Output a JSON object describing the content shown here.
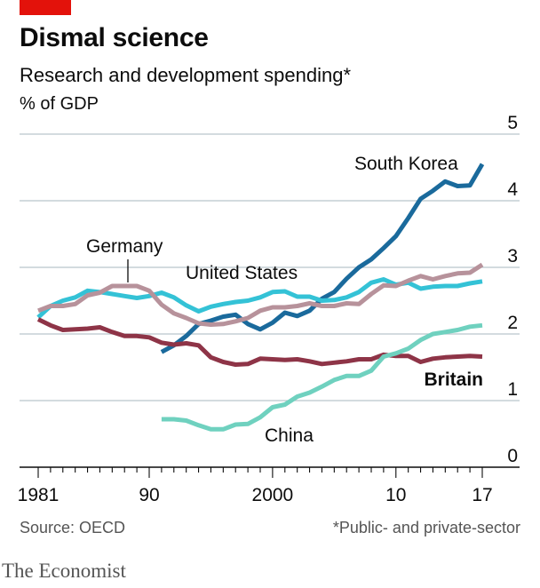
{
  "header": {
    "title": "Dismal science",
    "subtitle": "Research and development spending*",
    "unit": "% of GDP"
  },
  "footer": {
    "source": "Source: OECD",
    "footnote": "*Public- and private-sector",
    "brand": "The Economist"
  },
  "colors": {
    "brand_red": "#e3120b",
    "south_korea": "#1a6a9c",
    "united_states": "#34c2d6",
    "germany": "#b7929b",
    "britain": "#8e3447",
    "china": "#6fd1bf"
  },
  "chart_data": {
    "type": "line",
    "xlim": [
      1981,
      2017
    ],
    "ylim": [
      0,
      5
    ],
    "x_ticks": [
      1981,
      1990,
      2000,
      2010,
      2017
    ],
    "x_tick_labels": [
      "1981",
      "90",
      "2000",
      "10",
      "17"
    ],
    "y_ticks": [
      0,
      1,
      2,
      3,
      4,
      5
    ],
    "y_tick_labels": [
      "0",
      "1",
      "2",
      "3",
      "4",
      "5"
    ],
    "grid": "horizontal",
    "series": [
      {
        "name": "South Korea",
        "color": "#1a6a9c",
        "bold_label": false,
        "x": [
          1991,
          1992,
          1993,
          1994,
          1995,
          1996,
          1997,
          1998,
          1999,
          2000,
          2001,
          2002,
          2003,
          2004,
          2005,
          2006,
          2007,
          2008,
          2009,
          2010,
          2011,
          2012,
          2013,
          2014,
          2015,
          2016,
          2017
        ],
        "y": [
          1.73,
          1.83,
          1.97,
          2.15,
          2.2,
          2.26,
          2.29,
          2.15,
          2.07,
          2.17,
          2.32,
          2.27,
          2.35,
          2.53,
          2.63,
          2.83,
          3.0,
          3.12,
          3.29,
          3.47,
          3.74,
          4.03,
          4.15,
          4.29,
          4.22,
          4.23,
          4.55
        ]
      },
      {
        "name": "United States",
        "color": "#34c2d6",
        "bold_label": false,
        "x": [
          1981,
          1982,
          1983,
          1984,
          1985,
          1986,
          1987,
          1988,
          1989,
          1990,
          1991,
          1992,
          1993,
          1994,
          1995,
          1996,
          1997,
          1998,
          1999,
          2000,
          2001,
          2002,
          2003,
          2004,
          2005,
          2006,
          2007,
          2008,
          2009,
          2010,
          2011,
          2012,
          2013,
          2014,
          2015,
          2016,
          2017
        ],
        "y": [
          2.25,
          2.42,
          2.5,
          2.55,
          2.65,
          2.63,
          2.6,
          2.57,
          2.54,
          2.57,
          2.62,
          2.55,
          2.43,
          2.34,
          2.41,
          2.45,
          2.48,
          2.5,
          2.55,
          2.63,
          2.64,
          2.56,
          2.56,
          2.5,
          2.51,
          2.55,
          2.63,
          2.77,
          2.82,
          2.74,
          2.77,
          2.68,
          2.71,
          2.72,
          2.72,
          2.76,
          2.79
        ]
      },
      {
        "name": "Germany",
        "color": "#b7929b",
        "bold_label": false,
        "x": [
          1981,
          1982,
          1983,
          1984,
          1985,
          1986,
          1987,
          1988,
          1989,
          1990,
          1991,
          1992,
          1993,
          1994,
          1995,
          1996,
          1997,
          1998,
          1999,
          2000,
          2001,
          2002,
          2003,
          2004,
          2005,
          2006,
          2007,
          2008,
          2009,
          2010,
          2011,
          2012,
          2013,
          2014,
          2015,
          2016,
          2017
        ],
        "y": [
          2.35,
          2.42,
          2.42,
          2.45,
          2.58,
          2.62,
          2.72,
          2.72,
          2.72,
          2.65,
          2.44,
          2.31,
          2.24,
          2.16,
          2.14,
          2.15,
          2.19,
          2.24,
          2.35,
          2.4,
          2.4,
          2.42,
          2.46,
          2.42,
          2.42,
          2.46,
          2.45,
          2.6,
          2.73,
          2.72,
          2.8,
          2.87,
          2.82,
          2.87,
          2.91,
          2.92,
          3.04
        ]
      },
      {
        "name": "Britain",
        "color": "#8e3447",
        "bold_label": true,
        "x": [
          1981,
          1982,
          1983,
          1984,
          1985,
          1986,
          1987,
          1988,
          1989,
          1990,
          1991,
          1992,
          1993,
          1994,
          1995,
          1996,
          1997,
          1998,
          1999,
          2000,
          2001,
          2002,
          2003,
          2004,
          2005,
          2006,
          2007,
          2008,
          2009,
          2010,
          2011,
          2012,
          2013,
          2014,
          2015,
          2016,
          2017
        ],
        "y": [
          2.22,
          2.13,
          2.06,
          2.07,
          2.08,
          2.1,
          2.03,
          1.97,
          1.97,
          1.95,
          1.87,
          1.84,
          1.86,
          1.83,
          1.65,
          1.58,
          1.54,
          1.55,
          1.63,
          1.62,
          1.61,
          1.62,
          1.59,
          1.55,
          1.57,
          1.59,
          1.62,
          1.62,
          1.69,
          1.67,
          1.67,
          1.58,
          1.63,
          1.65,
          1.66,
          1.67,
          1.66
        ]
      },
      {
        "name": "China",
        "color": "#6fd1bf",
        "bold_label": false,
        "x": [
          1991,
          1992,
          1993,
          1994,
          1995,
          1996,
          1997,
          1998,
          1999,
          2000,
          2001,
          2002,
          2003,
          2004,
          2005,
          2006,
          2007,
          2008,
          2009,
          2010,
          2011,
          2012,
          2013,
          2014,
          2015,
          2016,
          2017
        ],
        "y": [
          0.72,
          0.72,
          0.7,
          0.63,
          0.57,
          0.57,
          0.64,
          0.65,
          0.75,
          0.9,
          0.94,
          1.06,
          1.12,
          1.21,
          1.31,
          1.37,
          1.37,
          1.45,
          1.66,
          1.71,
          1.78,
          1.91,
          2.0,
          2.03,
          2.06,
          2.11,
          2.13
        ]
      }
    ]
  },
  "labels": {
    "south_korea": "South Korea",
    "united_states": "United States",
    "germany": "Germany",
    "britain": "Britain",
    "china": "China"
  }
}
